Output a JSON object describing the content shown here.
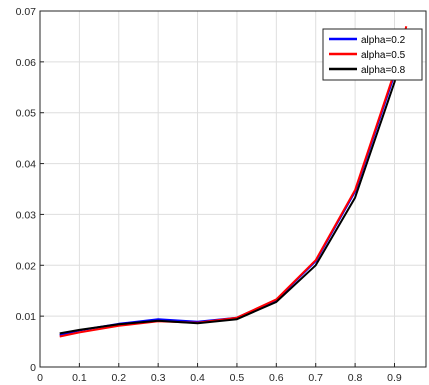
{
  "chart_data": {
    "type": "line",
    "title": "",
    "xlabel": "",
    "ylabel": "",
    "xlim": [
      0,
      0.98
    ],
    "ylim": [
      0,
      0.07
    ],
    "x_ticks": [
      "0",
      "0.1",
      "0.2",
      "0.3",
      "0.4",
      "0.5",
      "0.6",
      "0.7",
      "0.8",
      "0.9"
    ],
    "y_ticks": [
      "0",
      "0.01",
      "0.02",
      "0.03",
      "0.04",
      "0.05",
      "0.06",
      "0.07"
    ],
    "grid": true,
    "legend_position": "top-right",
    "series": [
      {
        "name": "alpha=0.2",
        "color": "#0000ff",
        "x": [
          0.05,
          0.1,
          0.2,
          0.3,
          0.4,
          0.5,
          0.6,
          0.7,
          0.8,
          0.9,
          0.93
        ],
        "y": [
          0.0063,
          0.0072,
          0.0085,
          0.0094,
          0.0089,
          0.0097,
          0.0132,
          0.0208,
          0.0345,
          0.0575,
          0.066
        ]
      },
      {
        "name": "alpha=0.5",
        "color": "#ff0000",
        "x": [
          0.05,
          0.1,
          0.2,
          0.3,
          0.4,
          0.5,
          0.6,
          0.7,
          0.8,
          0.9,
          0.93
        ],
        "y": [
          0.006,
          0.0068,
          0.0081,
          0.009,
          0.0087,
          0.0097,
          0.0133,
          0.021,
          0.0348,
          0.058,
          0.067
        ]
      },
      {
        "name": "alpha=0.8",
        "color": "#000000",
        "x": [
          0.05,
          0.1,
          0.2,
          0.3,
          0.4,
          0.5,
          0.6,
          0.7,
          0.8,
          0.9,
          0.93
        ],
        "y": [
          0.0066,
          0.0073,
          0.0084,
          0.0091,
          0.0086,
          0.0094,
          0.0128,
          0.02,
          0.0333,
          0.056,
          0.065
        ]
      }
    ]
  }
}
